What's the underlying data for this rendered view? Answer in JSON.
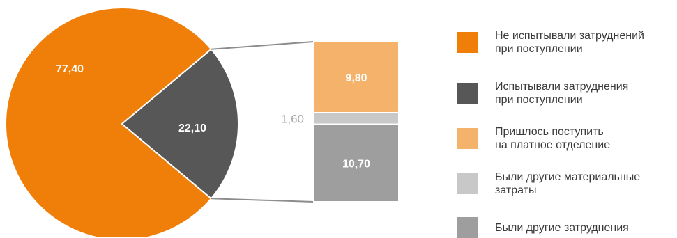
{
  "chart_data": {
    "type": "bar-of-pie",
    "pie": {
      "slices": [
        {
          "name": "Не испытывали затруднений при поступлении",
          "value": 77.4,
          "label": "77,40",
          "color": "#f07f09"
        },
        {
          "name": "Испытывали затруднения при поступлении",
          "value": 22.1,
          "label": "22,10",
          "color": "#575757"
        }
      ]
    },
    "bar": {
      "segments": [
        {
          "name": "Пришлось поступить на платное отделение",
          "value": 9.8,
          "label": "9,80",
          "color": "#f5b26b"
        },
        {
          "name": "Были другие материальные затраты",
          "value": 1.6,
          "label": "1,60",
          "color": "#c8c8c8"
        },
        {
          "name": "Были другие затруднения",
          "value": 10.7,
          "label": "10,70",
          "color": "#9e9e9e"
        }
      ]
    },
    "legend": {
      "position": "right",
      "items": [
        {
          "label": "Не испытывали затруднений\nпри поступлении",
          "color": "#f07f09"
        },
        {
          "label": "Испытывали затруднения\nпри поступлении",
          "color": "#575757"
        },
        {
          "label": "Пришлось поступить\nна платное отделение",
          "color": "#f5b26b"
        },
        {
          "label": "Были другие материальные\nзатраты",
          "color": "#c8c8c8"
        },
        {
          "label": "Были другие затруднения",
          "color": "#9e9e9e"
        }
      ]
    },
    "connector_color": "#8c8c8c"
  }
}
